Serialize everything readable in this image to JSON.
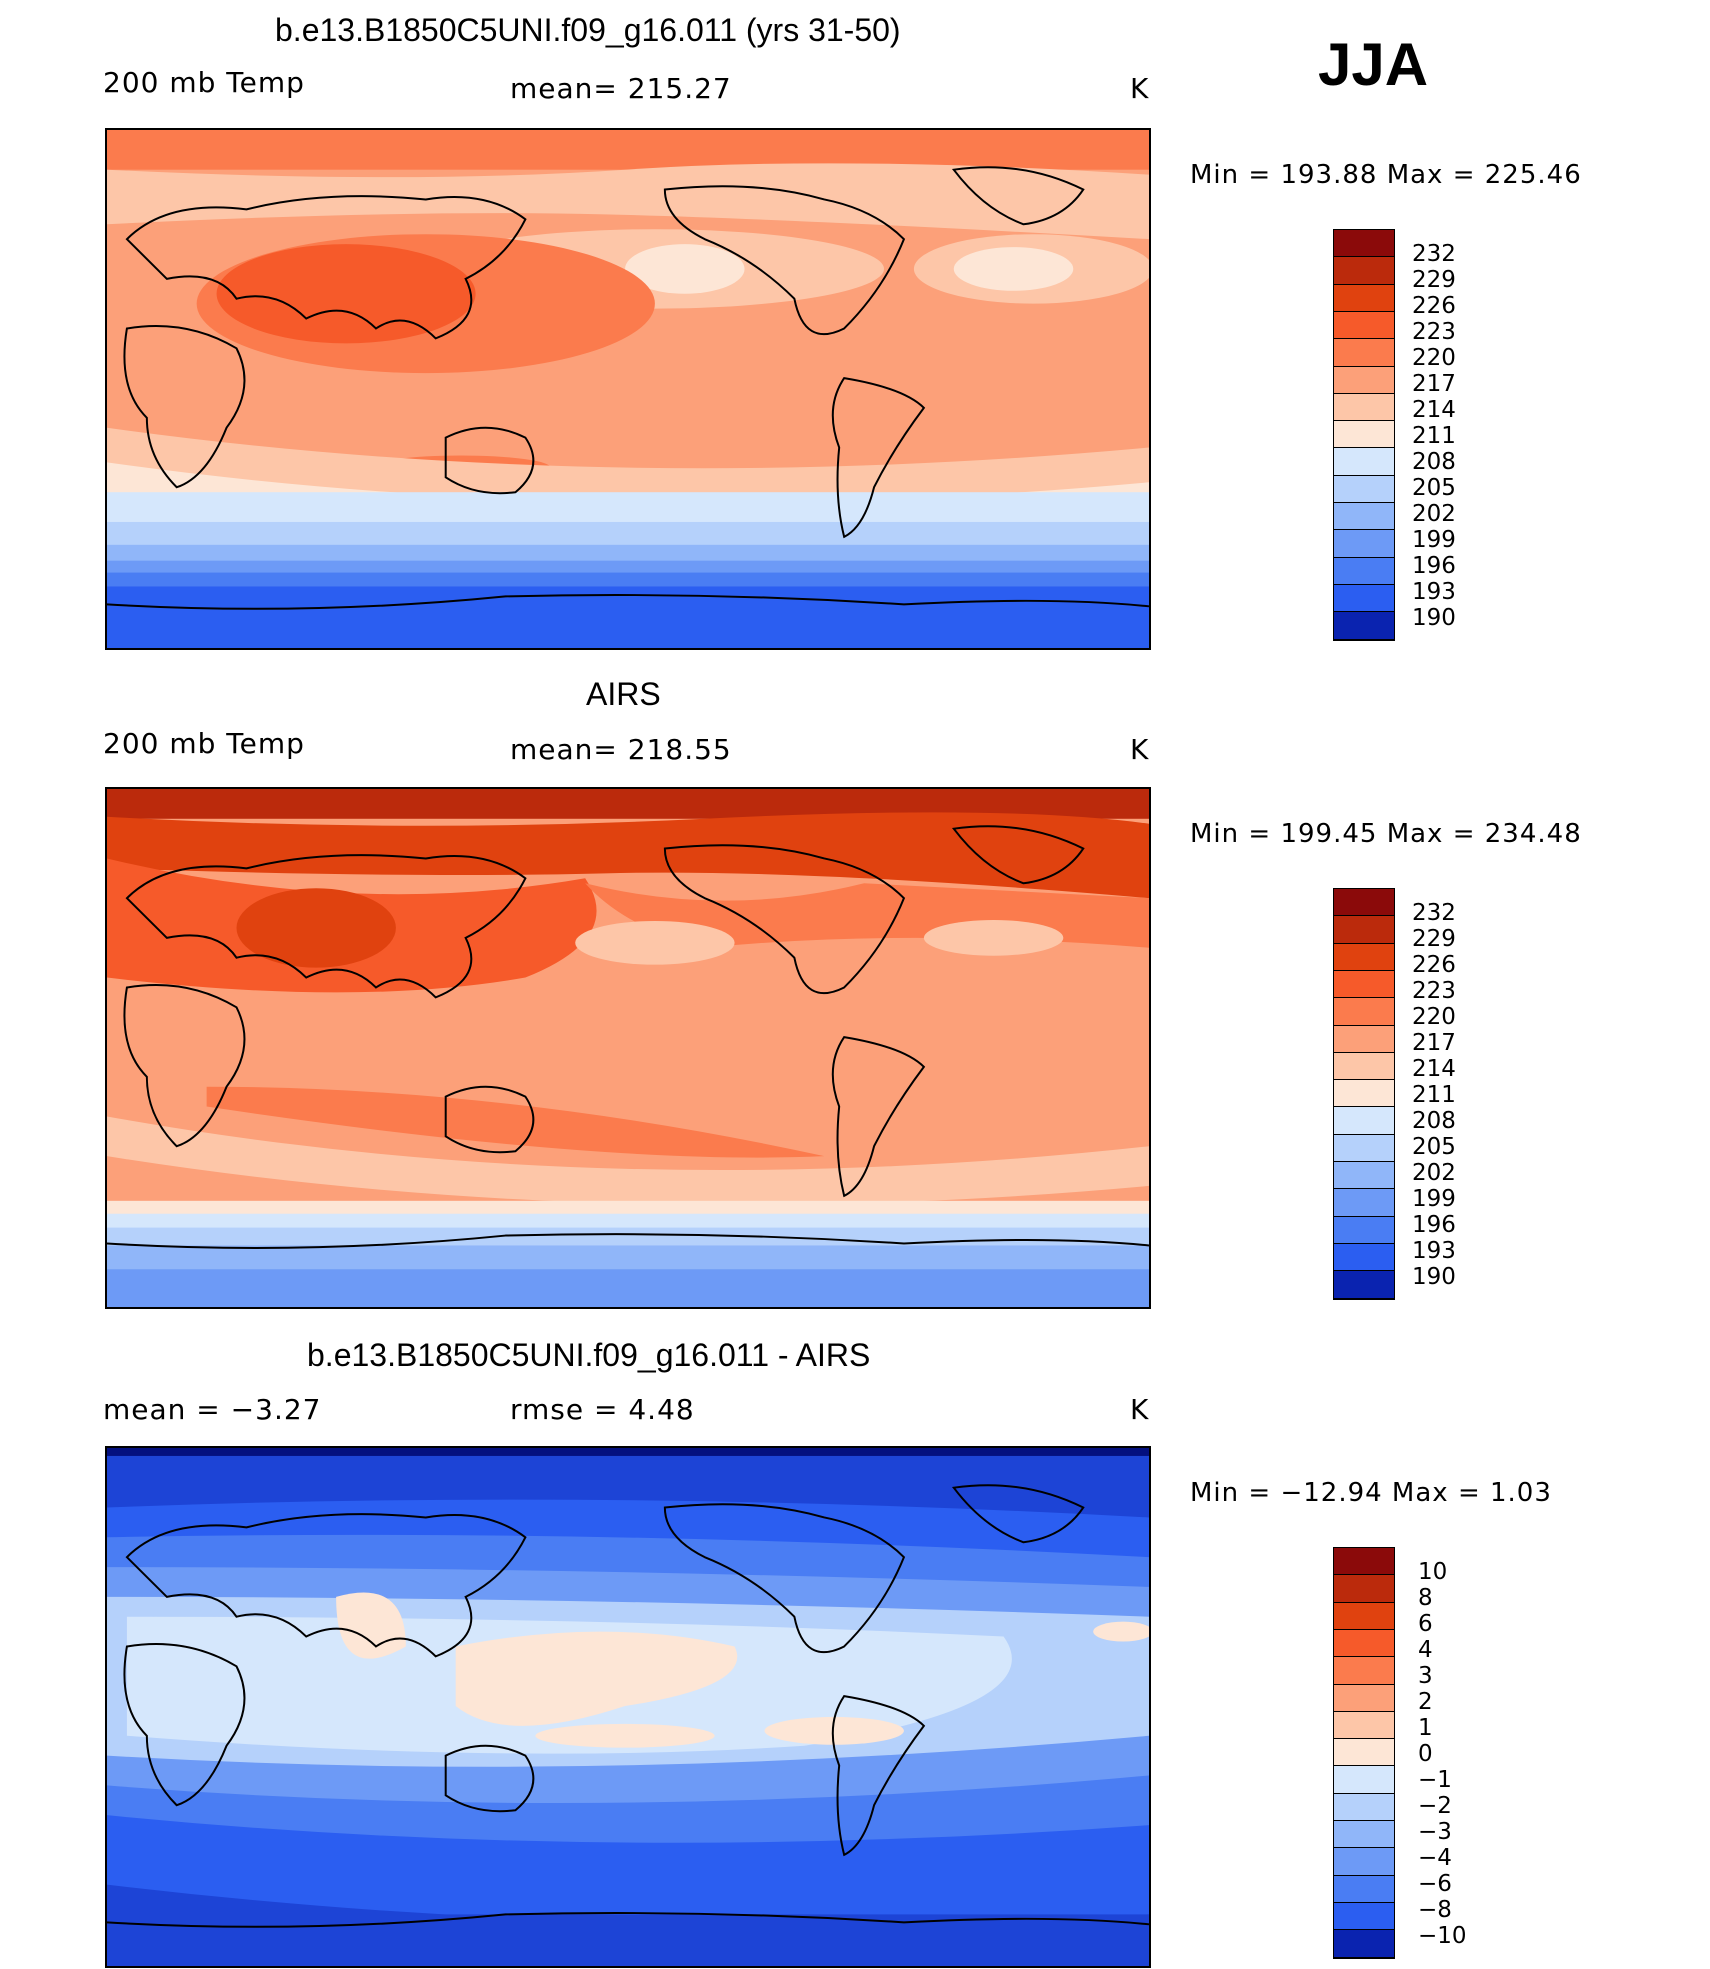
{
  "season": "JJA",
  "unit": "K",
  "colors": {
    "warm": [
      "#8b0a0a",
      "#bb2a0c",
      "#e0420f",
      "#f65a2a",
      "#fb7b4d",
      "#fca079",
      "#fdc6a8",
      "#fde6d6"
    ],
    "cool": [
      "#d5e7fc",
      "#b5d1fb",
      "#90b6f9",
      "#6d9af6",
      "#4a7df3",
      "#2b5ef1",
      "#1d44d6",
      "#0a23b0",
      "#04107f"
    ]
  },
  "panels": [
    {
      "title": "b.e13.B1850C5UNI.f09_g16.011 (yrs 31-50)",
      "left_label": "200 mb Temp",
      "center_label": "mean= 215.27",
      "right_label": "K",
      "min_max": "Min = 193.88 Max = 225.46",
      "colorbar_labels": [
        "232",
        "229",
        "226",
        "223",
        "220",
        "217",
        "214",
        "211",
        "208",
        "205",
        "202",
        "199",
        "196",
        "193",
        "190"
      ]
    },
    {
      "title": "AIRS",
      "left_label": "200 mb Temp",
      "center_label": "mean= 218.55",
      "right_label": "K",
      "min_max": "Min = 199.45 Max = 234.48",
      "colorbar_labels": [
        "232",
        "229",
        "226",
        "223",
        "220",
        "217",
        "214",
        "211",
        "208",
        "205",
        "202",
        "199",
        "196",
        "193",
        "190"
      ]
    },
    {
      "title": "b.e13.B1850C5UNI.f09_g16.011 - AIRS",
      "left_label": "mean =   −3.27",
      "center_label": "rmse =    4.48",
      "right_label": "K",
      "min_max": "Min = −12.94 Max =    1.03",
      "colorbar_labels": [
        "10",
        "8",
        "6",
        "4",
        "3",
        "2",
        "1",
        "0",
        "−1",
        "−2",
        "−3",
        "−4",
        "−6",
        "−8",
        "−10"
      ]
    }
  ]
}
